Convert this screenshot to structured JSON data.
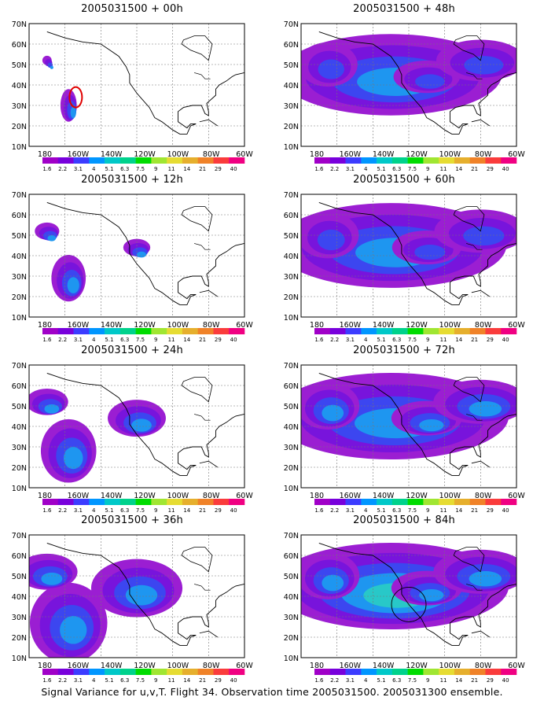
{
  "caption": "Signal Variance for u,v,T. Flight 34. Observation time 2005031500. 2005031300 ensemble.",
  "axes": {
    "lat_labels": [
      "70N",
      "60N",
      "50N",
      "40N",
      "30N",
      "20N",
      "10N"
    ],
    "lon_labels": [
      "180",
      "160W",
      "140W",
      "120W",
      "100W",
      "80W",
      "60W"
    ]
  },
  "colorbar": {
    "labels": [
      "1.6",
      "2.2",
      "3.1",
      "4",
      "5.1",
      "6.3",
      "7.5",
      "9",
      "11",
      "14",
      "21",
      "29",
      "40"
    ],
    "colors": [
      "#a000c8",
      "#7800dc",
      "#3c3cff",
      "#0096ff",
      "#00c8c8",
      "#00d28c",
      "#00dc00",
      "#a0e632",
      "#e6dc32",
      "#e6af2d",
      "#f08228",
      "#fa3c3c",
      "#f00082"
    ]
  },
  "panels": [
    {
      "title": "2005031500 + 00h",
      "spread": 0.35,
      "level": 0.55,
      "marker": "red-circle-track"
    },
    {
      "title": "2005031500 + 12h",
      "spread": 0.45,
      "level": 0.6
    },
    {
      "title": "2005031500 + 24h",
      "spread": 0.6,
      "level": 0.55
    },
    {
      "title": "2005031500 + 36h",
      "spread": 0.7,
      "level": 0.6
    },
    {
      "title": "2005031500 + 48h",
      "spread": 0.85,
      "level": 0.45
    },
    {
      "title": "2005031500 + 60h",
      "spread": 0.95,
      "level": 0.5
    },
    {
      "title": "2005031500 + 72h",
      "spread": 1.0,
      "level": 0.6
    },
    {
      "title": "2005031500 + 84h",
      "spread": 1.0,
      "level": 0.7,
      "marker": "black-circle"
    }
  ]
}
